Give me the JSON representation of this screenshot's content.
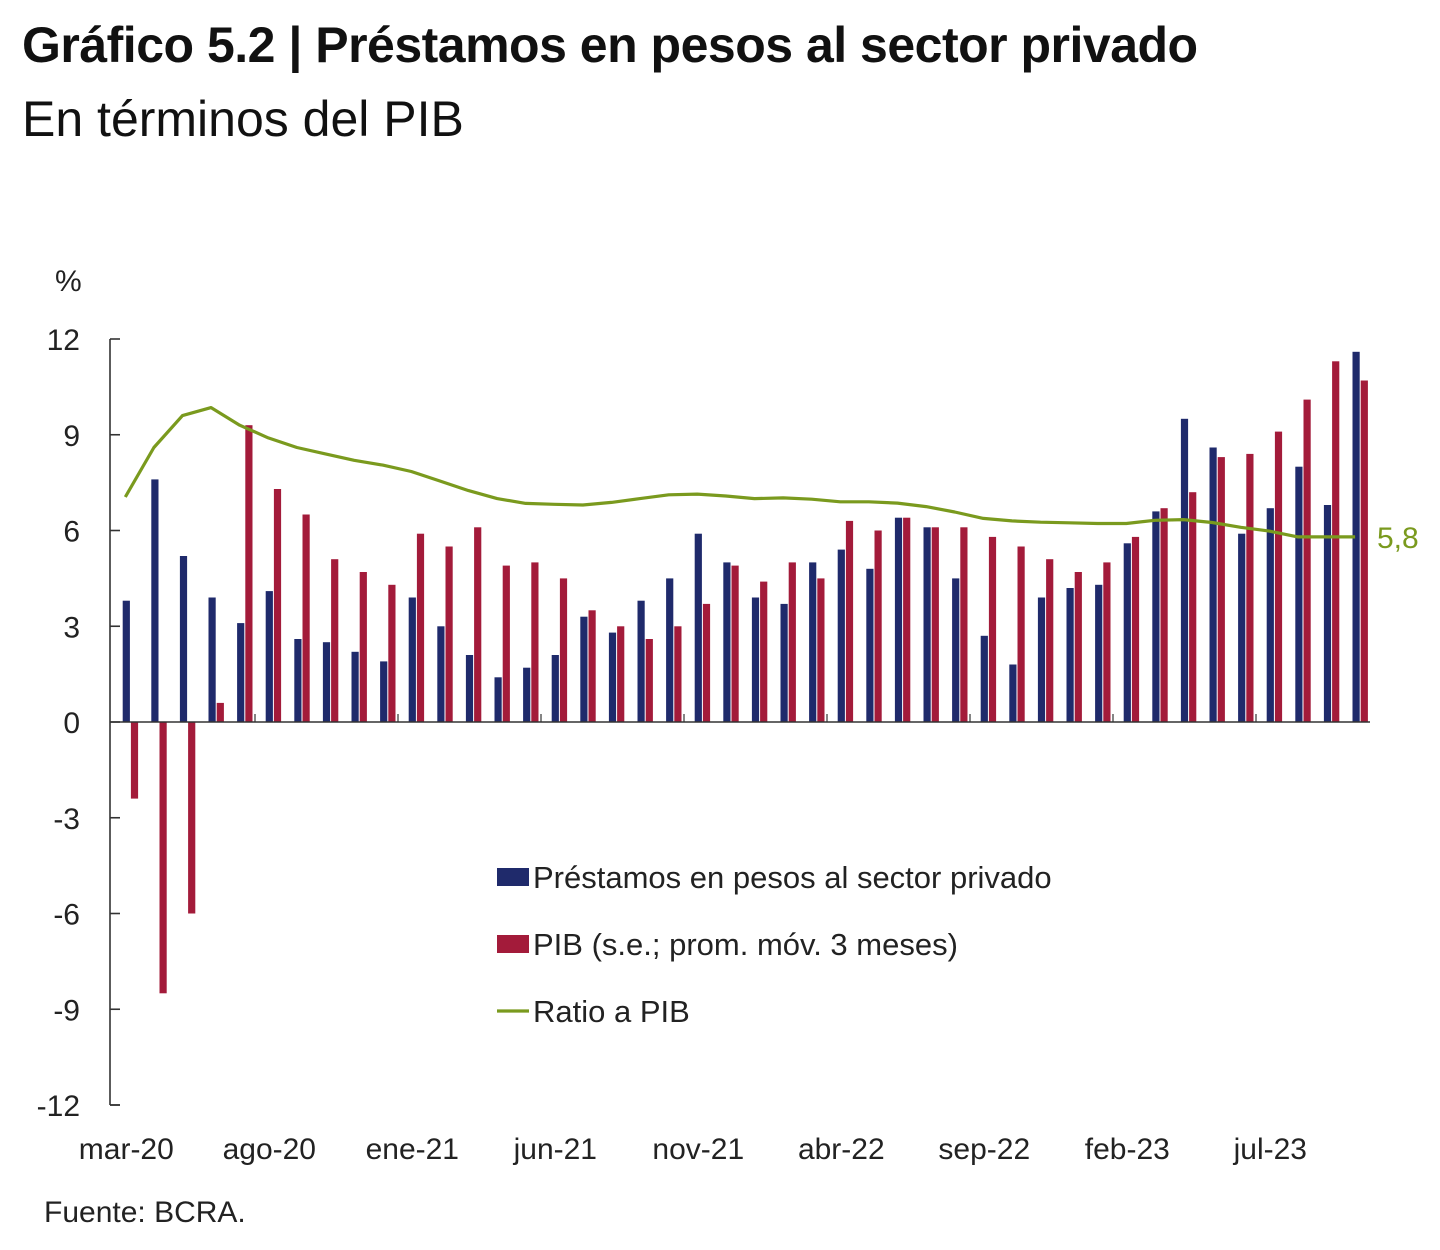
{
  "title": "Gráfico 5.2 | Préstamos en pesos al sector privado",
  "subtitle": "En términos del PIB",
  "source": "Fuente: BCRA.",
  "colors": {
    "prestamos": "#1f2a6b",
    "pib": "#a31b3a",
    "ratio": "#7a9a1e",
    "axis": "#333333"
  },
  "chart_data": {
    "type": "bar",
    "unit_label": "%",
    "ylim": [
      -12,
      12
    ],
    "yticks": [
      12,
      9,
      6,
      3,
      0,
      -3,
      -6,
      -9,
      -12
    ],
    "x_tick_labels": [
      {
        "label": "mar-20",
        "index": 0
      },
      {
        "label": "ago-20",
        "index": 5
      },
      {
        "label": "ene-21",
        "index": 10
      },
      {
        "label": "jun-21",
        "index": 15
      },
      {
        "label": "nov-21",
        "index": 20
      },
      {
        "label": "abr-22",
        "index": 25
      },
      {
        "label": "sep-22",
        "index": 30
      },
      {
        "label": "feb-23",
        "index": 35
      },
      {
        "label": "jul-23",
        "index": 40
      }
    ],
    "end_label": "5,8",
    "legend_position": "center-bottom",
    "series": [
      {
        "name": "Préstamos en pesos al sector privado",
        "kind": "bar",
        "values": [
          3.8,
          7.6,
          5.2,
          3.9,
          3.1,
          4.1,
          2.6,
          2.5,
          2.2,
          1.9,
          3.9,
          3.0,
          2.1,
          1.4,
          1.7,
          2.1,
          3.3,
          2.8,
          3.8,
          4.5,
          5.9,
          5.0,
          3.9,
          3.7,
          5.0,
          5.4,
          4.8,
          6.4,
          6.1,
          4.5,
          2.7,
          1.8,
          3.9,
          4.2,
          4.3,
          5.6,
          6.6,
          9.5,
          8.6,
          5.9,
          6.7,
          8.0,
          6.8,
          11.6
        ]
      },
      {
        "name": "PIB (s.e.; prom. móv. 3 meses)",
        "kind": "bar",
        "values": [
          -2.4,
          -8.5,
          -6.0,
          0.6,
          9.3,
          7.3,
          6.5,
          5.1,
          4.7,
          4.3,
          5.9,
          5.5,
          6.1,
          4.9,
          5.0,
          4.5,
          3.5,
          3.0,
          2.6,
          3.0,
          3.7,
          4.9,
          4.4,
          5.0,
          4.5,
          6.3,
          6.0,
          6.4,
          6.1,
          6.1,
          5.8,
          5.5,
          5.1,
          4.7,
          5.0,
          5.8,
          6.7,
          7.2,
          8.3,
          8.4,
          9.1,
          10.1,
          11.3,
          10.7
        ]
      },
      {
        "name": "Ratio a PIB",
        "kind": "line",
        "values": [
          7.05,
          8.6,
          9.6,
          9.85,
          9.3,
          8.9,
          8.6,
          8.4,
          8.2,
          8.05,
          7.85,
          7.55,
          7.25,
          7.0,
          6.85,
          6.82,
          6.8,
          6.88,
          7.0,
          7.12,
          7.14,
          7.08,
          7.0,
          7.02,
          6.98,
          6.9,
          6.9,
          6.86,
          6.75,
          6.58,
          6.38,
          6.3,
          6.26,
          6.24,
          6.22,
          6.22,
          6.32,
          6.34,
          6.25,
          6.1,
          5.98,
          5.8,
          5.8,
          5.8
        ]
      }
    ]
  }
}
